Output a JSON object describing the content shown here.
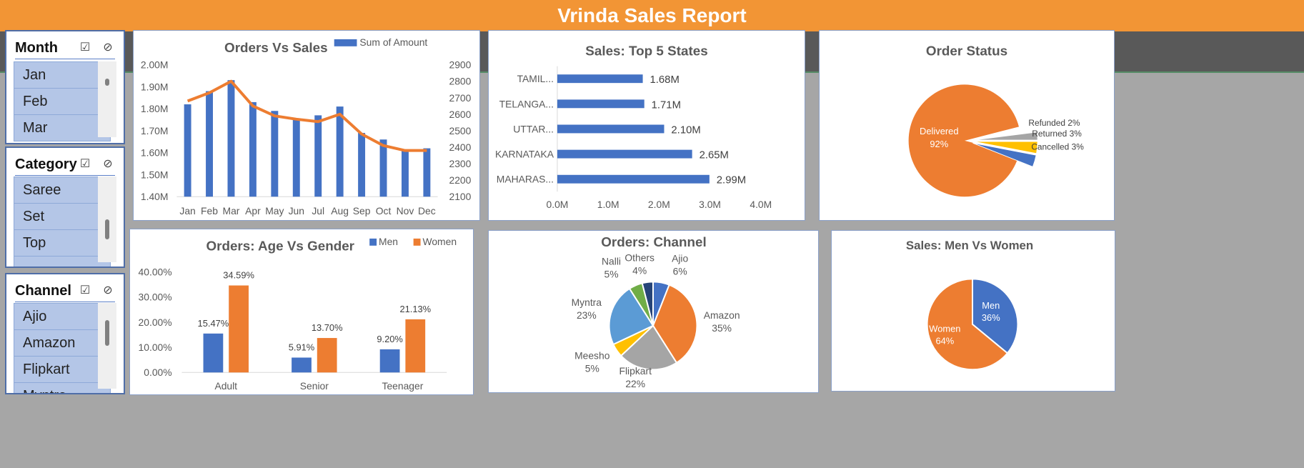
{
  "header": {
    "title": "Vrinda Sales Report"
  },
  "slicers": [
    {
      "title": "Month",
      "items": [
        "Jan",
        "Feb",
        "Mar"
      ]
    },
    {
      "title": "Category",
      "items": [
        "Saree",
        "Set",
        "Top"
      ]
    },
    {
      "title": "Channel",
      "items": [
        "Ajio",
        "Amazon",
        "Flipkart",
        "Myntra"
      ]
    }
  ],
  "charts": [
    {
      "chart_data": {
        "type": "bar",
        "title": "Orders Vs Sales",
        "categories": [
          "Jan",
          "Feb",
          "Mar",
          "Apr",
          "May",
          "Jun",
          "Jul",
          "Aug",
          "Sep",
          "Oct",
          "Nov",
          "Dec"
        ],
        "series": [
          {
            "name": "Sum of Amount",
            "type": "bar",
            "axis": "left",
            "values": [
              1.82,
              1.88,
              1.93,
              1.83,
              1.79,
              1.75,
              1.77,
              1.81,
              1.69,
              1.66,
              1.61,
              1.62
            ]
          },
          {
            "type": "line",
            "axis": "right",
            "values": [
              2680,
              2730,
              2800,
              2650,
              2590,
              2570,
              2555,
              2600,
              2480,
              2410,
              2380,
              2380
            ]
          }
        ],
        "left_axis": {
          "ylim": [
            1.4,
            2.0
          ],
          "ticks": [
            "1.40M",
            "1.50M",
            "1.60M",
            "1.70M",
            "1.80M",
            "1.90M",
            "2.00M"
          ]
        },
        "right_axis": {
          "ylim": [
            2100,
            2900
          ],
          "ticks": [
            "2100",
            "2200",
            "2300",
            "2400",
            "2500",
            "2600",
            "2700",
            "2800",
            "2900"
          ]
        },
        "legend": "top-right",
        "colors": {
          "bar": "#4472c4",
          "line": "#ed7d31"
        }
      }
    },
    {
      "chart_data": {
        "type": "bar",
        "orientation": "horizontal",
        "title": "Sales: Top 5 States",
        "categories": [
          "TAMIL...",
          "TELANGA...",
          "UTTAR...",
          "KARNATAKA",
          "MAHARAS..."
        ],
        "values": [
          1.68,
          1.71,
          2.1,
          2.65,
          2.99
        ],
        "data_labels": [
          "1.68M",
          "1.71M",
          "2.10M",
          "2.65M",
          "2.99M"
        ],
        "xlim": [
          0,
          4
        ],
        "ticks": [
          "0.0M",
          "1.0M",
          "2.0M",
          "3.0M",
          "4.0M"
        ],
        "colors": {
          "bar": "#4472c4"
        }
      }
    },
    {
      "chart_data": {
        "type": "pie",
        "title": "Order Status",
        "slices": [
          {
            "label": "Delivered",
            "pct": 92,
            "text": "92%",
            "color": "#ed7d31"
          },
          {
            "label": "Refunded",
            "pct": 2,
            "text": "Refunded 2%",
            "color": "#a5a5a5"
          },
          {
            "label": "Returned",
            "pct": 3,
            "text": "Returned 3%",
            "color": "#ffc000"
          },
          {
            "label": "Cancelled",
            "pct": 3,
            "text": "Cancelled 3%",
            "color": "#4472c4"
          }
        ]
      }
    },
    {
      "chart_data": {
        "type": "bar",
        "title": "Orders: Age Vs Gender",
        "categories": [
          "Adult",
          "Senior",
          "Teenager"
        ],
        "series": [
          {
            "name": "Men",
            "values": [
              15.47,
              5.91,
              9.2
            ],
            "labels": [
              "15.47%",
              "5.91%",
              "9.20%"
            ],
            "color": "#4472c4"
          },
          {
            "name": "Women",
            "values": [
              34.59,
              13.7,
              21.13
            ],
            "labels": [
              "34.59%",
              "13.70%",
              "21.13%"
            ],
            "color": "#ed7d31"
          }
        ],
        "ylim": [
          0,
          40
        ],
        "ticks": [
          "0.00%",
          "10.00%",
          "20.00%",
          "30.00%",
          "40.00%"
        ],
        "legend": "top-right"
      }
    },
    {
      "chart_data": {
        "type": "pie",
        "title": "Orders: Channel",
        "slices": [
          {
            "label": "Ajio",
            "pct": 6,
            "text": "6%",
            "color": "#4472c4"
          },
          {
            "label": "Amazon",
            "pct": 35,
            "text": "35%",
            "color": "#ed7d31"
          },
          {
            "label": "Flipkart",
            "pct": 22,
            "text": "22%",
            "color": "#a5a5a5"
          },
          {
            "label": "Meesho",
            "pct": 5,
            "text": "5%",
            "color": "#ffc000"
          },
          {
            "label": "Myntra",
            "pct": 23,
            "text": "23%",
            "color": "#5b9bd5"
          },
          {
            "label": "Nalli",
            "pct": 5,
            "text": "5%",
            "color": "#70ad47"
          },
          {
            "label": "Others",
            "pct": 4,
            "text": "4%",
            "color": "#264478"
          }
        ]
      }
    },
    {
      "chart_data": {
        "type": "pie",
        "title": "Sales: Men Vs Women",
        "slices": [
          {
            "label": "Men",
            "pct": 36,
            "text": "36%",
            "color": "#4472c4"
          },
          {
            "label": "Women",
            "pct": 64,
            "text": "64%",
            "color": "#ed7d31"
          }
        ]
      }
    }
  ]
}
